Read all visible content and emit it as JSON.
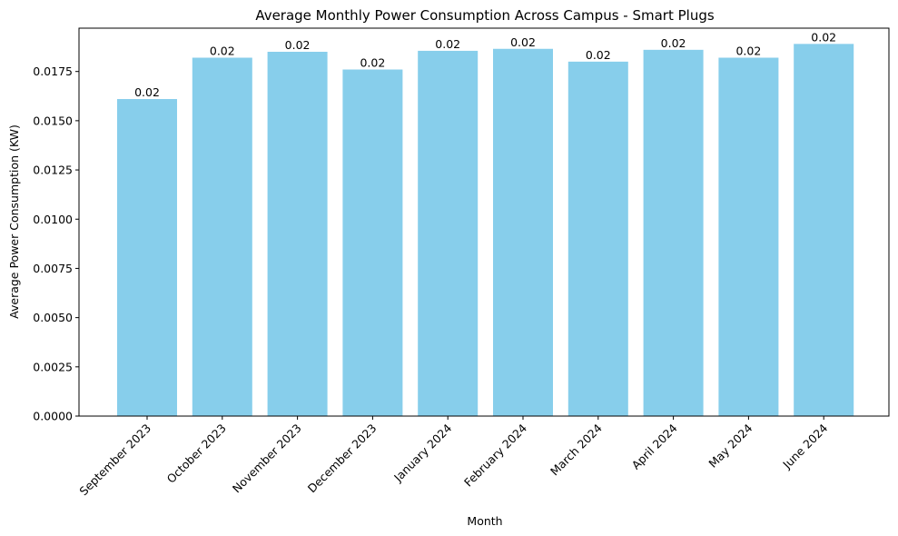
{
  "chart_data": {
    "type": "bar",
    "title": "Average Monthly Power Consumption Across Campus - Smart Plugs",
    "xlabel": "Month",
    "ylabel": "Average Power Consumption (KW)",
    "categories": [
      "September 2023",
      "October 2023",
      "November 2023",
      "December 2023",
      "January 2024",
      "February 2024",
      "March 2024",
      "April 2024",
      "May 2024",
      "June 2024"
    ],
    "values": [
      0.0161,
      0.0182,
      0.0185,
      0.0176,
      0.01855,
      0.01865,
      0.018,
      0.0186,
      0.0182,
      0.0189
    ],
    "data_labels": [
      "0.02",
      "0.02",
      "0.02",
      "0.02",
      "0.02",
      "0.02",
      "0.02",
      "0.02",
      "0.02",
      "0.02"
    ],
    "yticks": [
      "0.0000",
      "0.0025",
      "0.0050",
      "0.0075",
      "0.0100",
      "0.0125",
      "0.0150",
      "0.0175"
    ],
    "ylim": [
      0,
      0.0197
    ],
    "grid": false,
    "bar_color": "#87CEEB"
  }
}
